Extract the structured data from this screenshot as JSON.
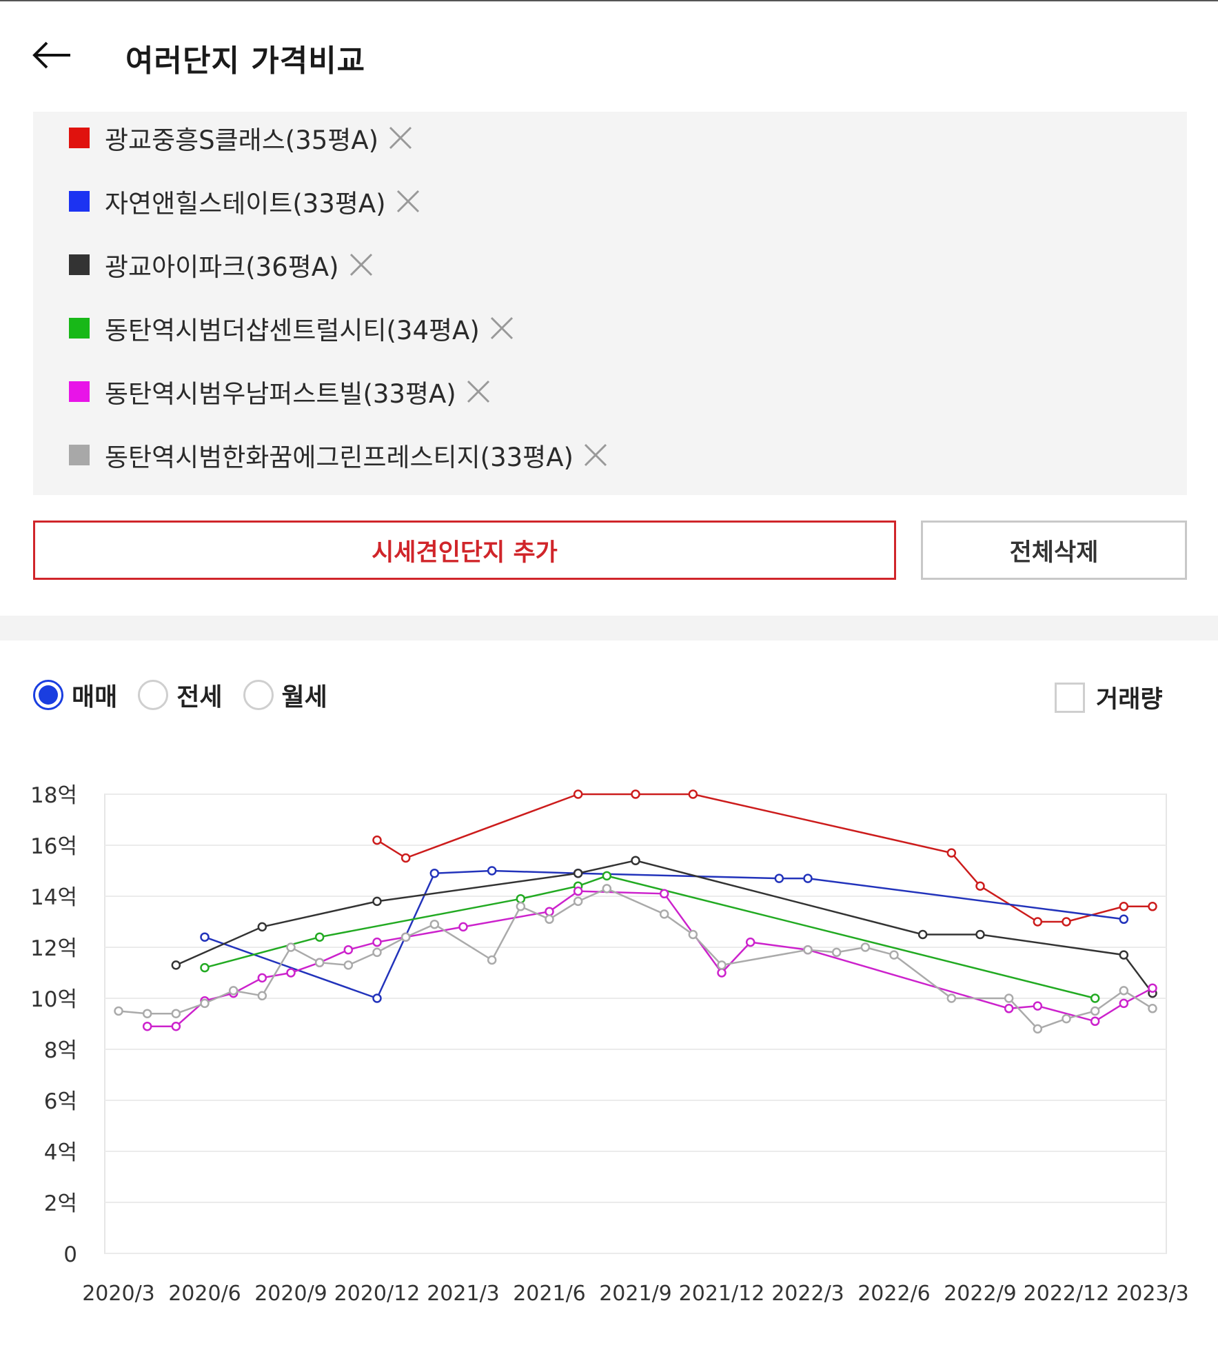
{
  "header": {
    "title": "여러단지 가격비교"
  },
  "legend": [
    {
      "label": "광교중흥S클래스(35평A)",
      "color": "#e0120e"
    },
    {
      "label": "자연앤힐스테이트(33평A)",
      "color": "#1c33f2"
    },
    {
      "label": "광교아이파크(36평A)",
      "color": "#333333"
    },
    {
      "label": "동탄역시범더샵센트럴시티(34평A)",
      "color": "#18b818"
    },
    {
      "label": "동탄역시범우남퍼스트빌(33평A)",
      "color": "#e814e8"
    },
    {
      "label": "동탄역시범한화꿈에그린프레스티지(33평A)",
      "color": "#a8a8a8"
    }
  ],
  "buttons": {
    "add": "시세견인단지 추가",
    "clear": "전체삭제"
  },
  "trade_types": [
    {
      "label": "매매",
      "selected": true
    },
    {
      "label": "전세",
      "selected": false
    },
    {
      "label": "월세",
      "selected": false
    }
  ],
  "volume_toggle": {
    "label": "거래량",
    "checked": false
  },
  "chart_data": {
    "type": "line",
    "x_ticks": [
      "2020/3",
      "2020/6",
      "2020/9",
      "2020/12",
      "2021/3",
      "2021/6",
      "2021/9",
      "2021/12",
      "2022/3",
      "2022/6",
      "2022/9",
      "2022/12",
      "2023/3"
    ],
    "y_ticks": [
      "0",
      "2억",
      "4억",
      "6억",
      "8억",
      "10억",
      "12억",
      "14억",
      "16억",
      "18억"
    ],
    "ylim": [
      0,
      18
    ],
    "xlim": [
      "2020/3",
      "2023/3"
    ],
    "grid": true,
    "series": [
      {
        "name": "광교중흥S클래스(35평A)",
        "color": "#cc1c1c",
        "points": [
          [
            "2020/12",
            16.2
          ],
          [
            "2021/1",
            15.5
          ],
          [
            "2021/7",
            18.0
          ],
          [
            "2021/9",
            18.0
          ],
          [
            "2021/11",
            18.0
          ],
          [
            "2022/8",
            15.7
          ],
          [
            "2022/9",
            14.4
          ],
          [
            "2022/11",
            13.0
          ],
          [
            "2022/12",
            13.0
          ],
          [
            "2023/2",
            13.6
          ],
          [
            "2023/3",
            13.6
          ]
        ]
      },
      {
        "name": "자연앤힐스테이트(33평A)",
        "color": "#2233bb",
        "points": [
          [
            "2020/6",
            12.4
          ],
          [
            "2020/12",
            10.0
          ],
          [
            "2021/2",
            14.9
          ],
          [
            "2021/4",
            15.0
          ],
          [
            "2021/7",
            14.9
          ],
          [
            "2022/2",
            14.7
          ],
          [
            "2022/3",
            14.7
          ],
          [
            "2023/2",
            13.1
          ]
        ]
      },
      {
        "name": "광교아이파크(36평A)",
        "color": "#333333",
        "points": [
          [
            "2020/5",
            11.3
          ],
          [
            "2020/8",
            12.8
          ],
          [
            "2020/12",
            13.8
          ],
          [
            "2021/7",
            14.9
          ],
          [
            "2021/9",
            15.4
          ],
          [
            "2022/7",
            12.5
          ],
          [
            "2022/9",
            12.5
          ],
          [
            "2023/2",
            11.7
          ],
          [
            "2023/3",
            10.2
          ]
        ]
      },
      {
        "name": "동탄역시범더샵센트럴시티(34평A)",
        "color": "#22aa22",
        "points": [
          [
            "2020/6",
            11.2
          ],
          [
            "2020/10",
            12.4
          ],
          [
            "2021/5",
            13.9
          ],
          [
            "2021/7",
            14.4
          ],
          [
            "2021/8",
            14.8
          ],
          [
            "2023/1",
            10.0
          ]
        ]
      },
      {
        "name": "동탄역시범우남퍼스트빌(33평A)",
        "color": "#cc22cc",
        "points": [
          [
            "2020/4",
            8.9
          ],
          [
            "2020/5",
            8.9
          ],
          [
            "2020/6",
            9.9
          ],
          [
            "2020/7",
            10.2
          ],
          [
            "2020/8",
            10.8
          ],
          [
            "2020/9",
            11.0
          ],
          [
            "2020/10",
            11.4
          ],
          [
            "2020/11",
            11.9
          ],
          [
            "2020/12",
            12.2
          ],
          [
            "2021/1",
            12.4
          ],
          [
            "2021/3",
            12.8
          ],
          [
            "2021/6",
            13.4
          ],
          [
            "2021/7",
            14.2
          ],
          [
            "2021/10",
            14.1
          ],
          [
            "2021/12",
            11.0
          ],
          [
            "2022/1",
            12.2
          ],
          [
            "2022/3",
            11.9
          ],
          [
            "2022/10",
            9.6
          ],
          [
            "2022/11",
            9.7
          ],
          [
            "2023/1",
            9.1
          ],
          [
            "2023/2",
            9.8
          ],
          [
            "2023/3",
            10.4
          ]
        ]
      },
      {
        "name": "동탄역시범한화꿈에그린프레스티지(33평A)",
        "color": "#aaaaaa",
        "points": [
          [
            "2020/3",
            9.5
          ],
          [
            "2020/4",
            9.4
          ],
          [
            "2020/5",
            9.4
          ],
          [
            "2020/6",
            9.8
          ],
          [
            "2020/7",
            10.3
          ],
          [
            "2020/8",
            10.1
          ],
          [
            "2020/9",
            12.0
          ],
          [
            "2020/10",
            11.4
          ],
          [
            "2020/11",
            11.3
          ],
          [
            "2020/12",
            11.8
          ],
          [
            "2021/1",
            12.4
          ],
          [
            "2021/2",
            12.9
          ],
          [
            "2021/4",
            11.5
          ],
          [
            "2021/5",
            13.6
          ],
          [
            "2021/6",
            13.1
          ],
          [
            "2021/7",
            13.8
          ],
          [
            "2021/8",
            14.3
          ],
          [
            "2021/10",
            13.3
          ],
          [
            "2021/11",
            12.5
          ],
          [
            "2021/12",
            11.3
          ],
          [
            "2022/3",
            11.9
          ],
          [
            "2022/4",
            11.8
          ],
          [
            "2022/5",
            12.0
          ],
          [
            "2022/6",
            11.7
          ],
          [
            "2022/8",
            10.0
          ],
          [
            "2022/10",
            10.0
          ],
          [
            "2022/11",
            8.8
          ],
          [
            "2022/12",
            9.2
          ],
          [
            "2023/1",
            9.5
          ],
          [
            "2023/2",
            10.3
          ],
          [
            "2023/3",
            9.6
          ]
        ]
      }
    ]
  }
}
